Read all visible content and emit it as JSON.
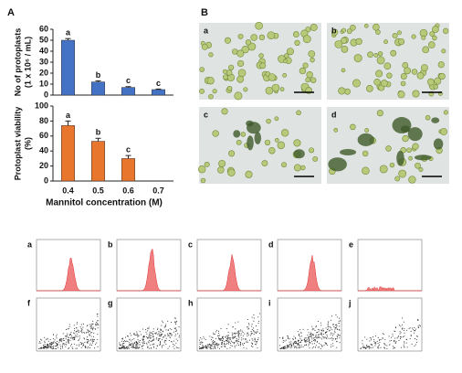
{
  "panel_labels": [
    "A",
    "B"
  ],
  "chart_data": [
    {
      "type": "bar",
      "ylabel": [
        "No of protoplasts",
        "(1 x 10⁶ / mL)"
      ],
      "categories": [
        null,
        null,
        null,
        null
      ],
      "values": [
        50,
        12,
        7,
        5
      ],
      "errors": [
        1.5,
        1,
        0.7,
        0.5
      ],
      "annotations": [
        "a",
        "b",
        "c",
        "c"
      ],
      "color": "#4472c4",
      "ylim": [
        0,
        60
      ],
      "yticks": [
        0,
        10,
        20,
        30,
        40,
        50,
        60
      ]
    },
    {
      "type": "bar",
      "ylabel": [
        "Protoplast viability",
        "(%)"
      ],
      "categories": [
        "0.4",
        "0.5",
        "0.6",
        "0.7"
      ],
      "values": [
        74,
        53,
        30,
        null
      ],
      "errors": [
        6,
        4,
        4,
        null
      ],
      "annotations": [
        "a",
        "b",
        "c",
        null
      ],
      "color": "#e8762d",
      "ylim": [
        0,
        100
      ],
      "yticks": [
        0,
        20,
        40,
        60,
        80,
        100
      ],
      "xlabel": "Mannitol concentration (M)"
    }
  ],
  "micrographs": [
    "a",
    "b",
    "c",
    "d"
  ],
  "histograms": [
    "a",
    "b",
    "c",
    "d",
    "e"
  ],
  "scatters": [
    "f",
    "g",
    "h",
    "i",
    "j"
  ]
}
